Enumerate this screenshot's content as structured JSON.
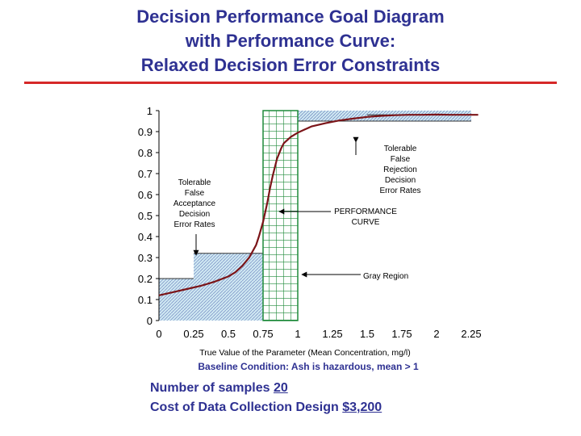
{
  "title_lines": [
    "Decision Performance Goal Diagram",
    "with Performance Curve:",
    "Relaxed Decision Error Constraints"
  ],
  "chart_data": {
    "type": "line",
    "title": "",
    "xlabel": "True Value of the Parameter (Mean Concentration, mg/l)",
    "subtitle": "Baseline Condition: Ash is hazardous, mean > 1",
    "xlim": [
      0,
      2.25
    ],
    "ylim": [
      0,
      1
    ],
    "x_ticks": [
      "0",
      "0.25",
      "0.5",
      "0.75",
      "1",
      "1.25",
      "1.5",
      "1.75",
      "2",
      "2.25"
    ],
    "y_ticks": [
      "0",
      "0.1",
      "0.2",
      "0.3",
      "0.4",
      "0.5",
      "0.6",
      "0.7",
      "0.8",
      "0.9",
      "1"
    ],
    "series": [
      {
        "color": "#7b1418",
        "x": [
          0,
          0.1,
          0.2,
          0.3,
          0.4,
          0.5,
          0.55,
          0.6,
          0.65,
          0.7,
          0.72,
          0.75,
          0.78,
          0.8,
          0.82,
          0.85,
          0.88,
          0.9,
          0.95,
          1.0,
          1.05,
          1.1,
          1.2,
          1.3,
          1.4,
          1.5,
          1.6,
          1.7,
          1.8,
          1.9,
          2.0,
          2.1,
          2.2,
          2.3
        ],
        "y": [
          0.12,
          0.135,
          0.15,
          0.165,
          0.185,
          0.21,
          0.23,
          0.26,
          0.3,
          0.36,
          0.4,
          0.47,
          0.56,
          0.63,
          0.69,
          0.77,
          0.82,
          0.845,
          0.875,
          0.895,
          0.91,
          0.925,
          0.94,
          0.953,
          0.962,
          0.97,
          0.975,
          0.978,
          0.98,
          0.98,
          0.981,
          0.98,
          0.98,
          0.98
        ]
      }
    ],
    "gray_region": [
      0.75,
      1.0
    ],
    "false_acceptance_steps": [
      {
        "x0": 0,
        "x1": 0.75,
        "y": 0.2
      },
      {
        "x0": 0.25,
        "x1": 0.75,
        "y": 0.32
      }
    ],
    "false_rejection_steps": [
      {
        "x0": 1.0,
        "x1": 2.25,
        "y": 0.95
      },
      {
        "x0": 1.5,
        "x1": 2.25,
        "y": 0.98
      }
    ],
    "annotations": [
      {
        "id": "tolerable-false-acceptance",
        "lines": [
          "Tolerable",
          "False",
          "Acceptance",
          "Decision",
          "Error Rates"
        ]
      },
      {
        "id": "tolerable-false-rejection",
        "lines": [
          "Tolerable",
          "False",
          "Rejection",
          "Decision",
          "Error Rates"
        ]
      },
      {
        "id": "performance-curve",
        "lines": [
          "PERFORMANCE",
          "CURVE"
        ]
      },
      {
        "id": "gray-region",
        "lines": [
          "Gray Region"
        ]
      }
    ],
    "colors": {
      "curve": "#7b1418",
      "gray_region": "#1f8a3a",
      "acceptance_fill": "#cfe8f2",
      "hatch": "#2a3f9a"
    }
  },
  "footer": {
    "samples_label": "Number of samples",
    "samples_value": "20",
    "cost_label": "Cost of Data Collection Design",
    "cost_value": "$3,200"
  }
}
